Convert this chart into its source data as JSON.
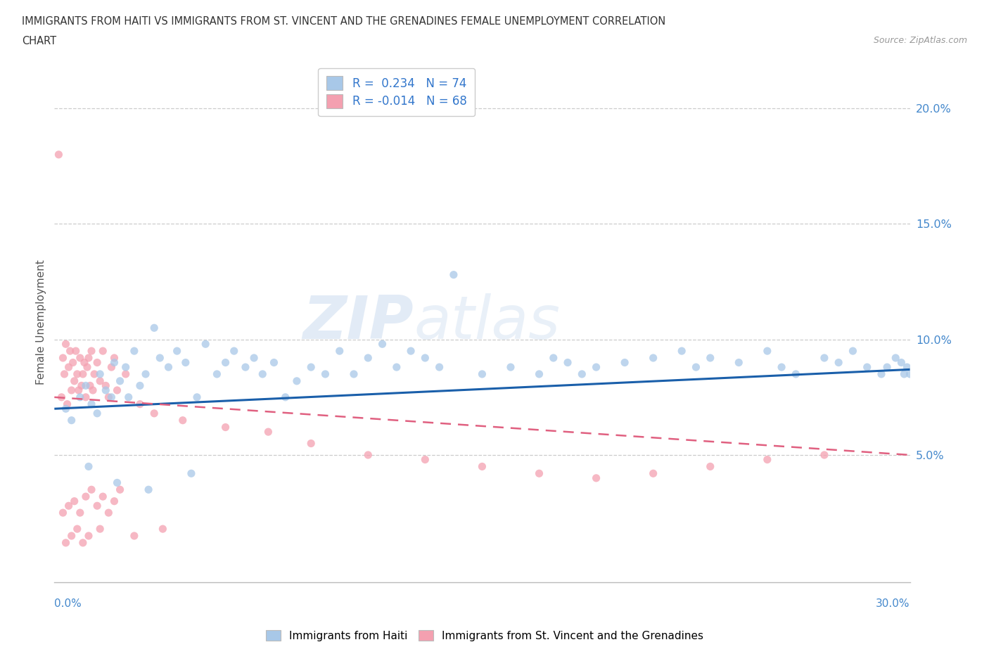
{
  "title_line1": "IMMIGRANTS FROM HAITI VS IMMIGRANTS FROM ST. VINCENT AND THE GRENADINES FEMALE UNEMPLOYMENT CORRELATION",
  "title_line2": "CHART",
  "source": "Source: ZipAtlas.com",
  "ylabel": "Female Unemployment",
  "ytick_vals": [
    5.0,
    10.0,
    15.0,
    20.0
  ],
  "xlim": [
    0.0,
    30.0
  ],
  "ylim": [
    -0.5,
    22.0
  ],
  "haiti_R": 0.234,
  "haiti_N": 74,
  "svg_R": -0.014,
  "svg_N": 68,
  "haiti_color": "#a8c8e8",
  "svg_color": "#f4a0b0",
  "haiti_line_color": "#1a5faa",
  "svg_line_color": "#e06080",
  "haiti_line_start": 7.0,
  "haiti_line_end": 8.7,
  "svg_line_start": 7.5,
  "svg_line_end": 5.0,
  "haiti_x": [
    0.4,
    0.6,
    0.9,
    1.1,
    1.3,
    1.5,
    1.6,
    1.8,
    2.0,
    2.1,
    2.3,
    2.5,
    2.6,
    2.8,
    3.0,
    3.2,
    3.5,
    3.7,
    4.0,
    4.3,
    4.6,
    5.0,
    5.3,
    5.7,
    6.0,
    6.3,
    6.7,
    7.0,
    7.3,
    7.7,
    8.1,
    8.5,
    9.0,
    9.5,
    10.0,
    10.5,
    11.0,
    11.5,
    12.0,
    12.5,
    13.0,
    13.5,
    14.0,
    15.0,
    16.0,
    17.0,
    17.5,
    18.0,
    18.5,
    19.0,
    20.0,
    21.0,
    22.0,
    22.5,
    23.0,
    24.0,
    25.0,
    25.5,
    26.0,
    27.0,
    27.5,
    28.0,
    28.5,
    29.0,
    29.2,
    29.5,
    29.7,
    29.8,
    29.9,
    30.0,
    1.2,
    2.2,
    3.3,
    4.8
  ],
  "haiti_y": [
    7.0,
    6.5,
    7.5,
    8.0,
    7.2,
    6.8,
    8.5,
    7.8,
    7.5,
    9.0,
    8.2,
    8.8,
    7.5,
    9.5,
    8.0,
    8.5,
    10.5,
    9.2,
    8.8,
    9.5,
    9.0,
    7.5,
    9.8,
    8.5,
    9.0,
    9.5,
    8.8,
    9.2,
    8.5,
    9.0,
    7.5,
    8.2,
    8.8,
    8.5,
    9.5,
    8.5,
    9.2,
    9.8,
    8.8,
    9.5,
    9.2,
    8.8,
    12.8,
    8.5,
    8.8,
    8.5,
    9.2,
    9.0,
    8.5,
    8.8,
    9.0,
    9.2,
    9.5,
    8.8,
    9.2,
    9.0,
    9.5,
    8.8,
    8.5,
    9.2,
    9.0,
    9.5,
    8.8,
    8.5,
    8.8,
    9.2,
    9.0,
    8.5,
    8.8,
    8.5,
    4.5,
    3.8,
    3.5,
    4.2
  ],
  "svg_x": [
    0.15,
    0.25,
    0.3,
    0.35,
    0.4,
    0.45,
    0.5,
    0.55,
    0.6,
    0.65,
    0.7,
    0.75,
    0.8,
    0.85,
    0.9,
    0.95,
    1.0,
    1.05,
    1.1,
    1.15,
    1.2,
    1.25,
    1.3,
    1.35,
    1.4,
    1.5,
    1.6,
    1.7,
    1.8,
    1.9,
    2.0,
    2.1,
    2.2,
    2.5,
    3.0,
    3.5,
    4.5,
    6.0,
    7.5,
    9.0,
    11.0,
    13.0,
    15.0,
    17.0,
    19.0,
    21.0,
    23.0,
    25.0,
    27.0,
    0.3,
    0.5,
    0.7,
    0.9,
    1.1,
    1.3,
    1.5,
    1.7,
    1.9,
    2.1,
    2.3,
    0.4,
    0.6,
    0.8,
    1.0,
    1.2,
    1.6,
    2.8,
    3.8
  ],
  "svg_y": [
    18.0,
    7.5,
    9.2,
    8.5,
    9.8,
    7.2,
    8.8,
    9.5,
    7.8,
    9.0,
    8.2,
    9.5,
    8.5,
    7.8,
    9.2,
    8.0,
    8.5,
    9.0,
    7.5,
    8.8,
    9.2,
    8.0,
    9.5,
    7.8,
    8.5,
    9.0,
    8.2,
    9.5,
    8.0,
    7.5,
    8.8,
    9.2,
    7.8,
    8.5,
    7.2,
    6.8,
    6.5,
    6.2,
    6.0,
    5.5,
    5.0,
    4.8,
    4.5,
    4.2,
    4.0,
    4.2,
    4.5,
    4.8,
    5.0,
    2.5,
    2.8,
    3.0,
    2.5,
    3.2,
    3.5,
    2.8,
    3.2,
    2.5,
    3.0,
    3.5,
    1.2,
    1.5,
    1.8,
    1.2,
    1.5,
    1.8,
    1.5,
    1.8
  ],
  "watermark_zip": "ZIP",
  "watermark_atlas": "atlas"
}
